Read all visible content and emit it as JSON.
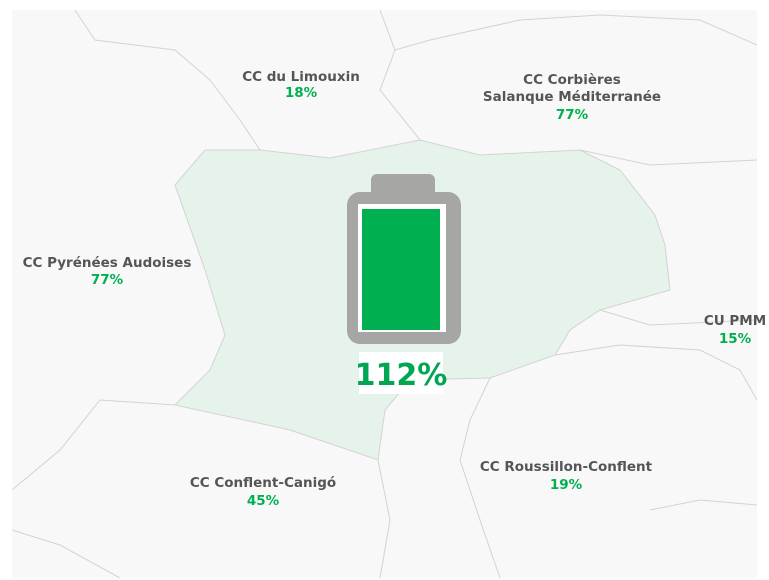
{
  "map": {
    "selected": {
      "value": "112%"
    },
    "regions": [
      {
        "name": "CC du Limouxin",
        "value": "18%"
      },
      {
        "name": "CC Corbières",
        "name2": "Salanque Méditerranée",
        "value": "77%"
      },
      {
        "name": "CC Pyrénées Audoises",
        "value": "77%"
      },
      {
        "name": "CU PMM",
        "value": "15%"
      },
      {
        "name": "CC Conflent-Canigó",
        "value": "45%"
      },
      {
        "name": "CC Roussillon-Conflent",
        "value": "19%"
      }
    ]
  }
}
